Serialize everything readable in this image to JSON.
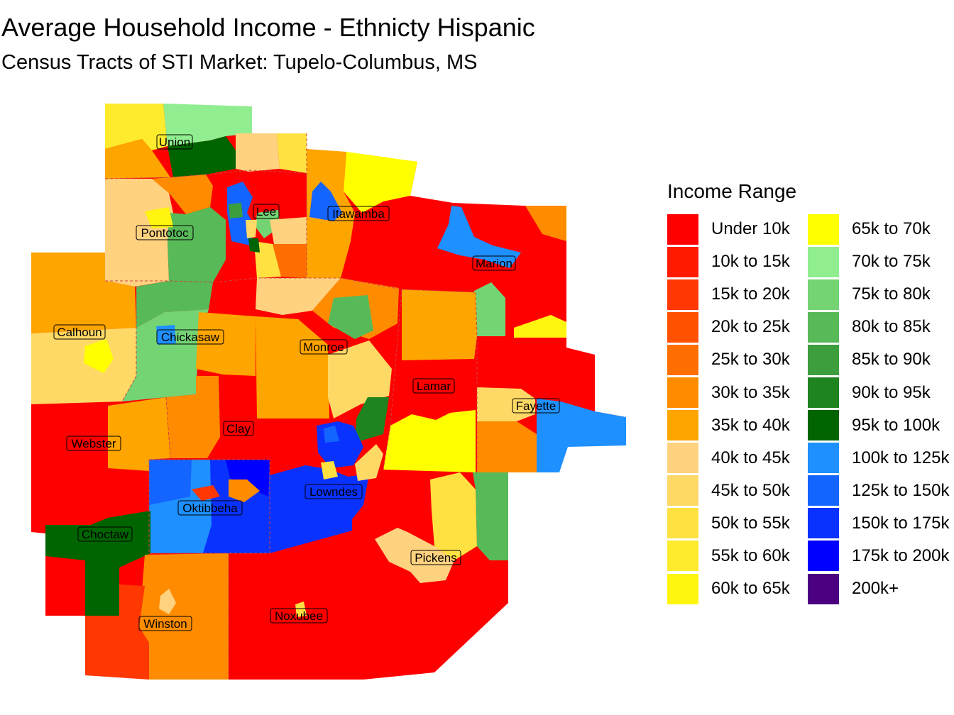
{
  "title": "Average Household Income - Ethnicty Hispanic",
  "subtitle": "Census Tracts of STI Market: Tupelo-Columbus, MS",
  "legend": {
    "title": "Income Range",
    "items": [
      {
        "label": "Under 10k",
        "color": "#FF0000"
      },
      {
        "label": "10k to 15k",
        "color": "#FF1A00"
      },
      {
        "label": "15k to 20k",
        "color": "#FF3700"
      },
      {
        "label": "20k to 25k",
        "color": "#FF5200"
      },
      {
        "label": "25k to 30k",
        "color": "#FF6E00"
      },
      {
        "label": "30k to 35k",
        "color": "#FF8C00"
      },
      {
        "label": "35k to 40k",
        "color": "#FFA500"
      },
      {
        "label": "40k to 45k",
        "color": "#FFD27F"
      },
      {
        "label": "45k to 50k",
        "color": "#FFD966"
      },
      {
        "label": "50k to 55k",
        "color": "#FFE241"
      },
      {
        "label": "55k to 60k",
        "color": "#FFEB2E"
      },
      {
        "label": "60k to 65k",
        "color": "#FFF50F"
      },
      {
        "label": "65k to 70k",
        "color": "#FFFF00"
      },
      {
        "label": "70k to 75k",
        "color": "#90EE90"
      },
      {
        "label": "75k to 80k",
        "color": "#74D474"
      },
      {
        "label": "80k to 85k",
        "color": "#58B958"
      },
      {
        "label": "85k to 90k",
        "color": "#3C9E3C"
      },
      {
        "label": "90k to 95k",
        "color": "#1F841F"
      },
      {
        "label": "95k to 100k",
        "color": "#006400"
      },
      {
        "label": "100k to 125k",
        "color": "#1E90FF"
      },
      {
        "label": "125k to 150k",
        "color": "#1464FF"
      },
      {
        "label": "150k to 175k",
        "color": "#0A32FF"
      },
      {
        "label": "175k to 200k",
        "color": "#0000FF"
      },
      {
        "label": "200k+",
        "color": "#4B0082"
      }
    ]
  },
  "counties": [
    {
      "name": "Union",
      "income_range": "95k to 100k"
    },
    {
      "name": "Lee",
      "income_range": "Under 10k"
    },
    {
      "name": "Itawamba",
      "income_range": "35k to 40k"
    },
    {
      "name": "Pontotoc",
      "income_range": "40k to 45k"
    },
    {
      "name": "Marion",
      "income_range": "Under 10k"
    },
    {
      "name": "Calhoun",
      "income_range": "50k to 55k"
    },
    {
      "name": "Chickasaw",
      "income_range": "80k to 85k"
    },
    {
      "name": "Monroe",
      "income_range": "Under 10k"
    },
    {
      "name": "Lamar",
      "income_range": "Under 10k"
    },
    {
      "name": "Fayette",
      "income_range": "35k to 40k"
    },
    {
      "name": "Webster",
      "income_range": "Under 10k"
    },
    {
      "name": "Clay",
      "income_range": "Under 10k"
    },
    {
      "name": "Lowndes",
      "income_range": "150k to 175k"
    },
    {
      "name": "Oktibbeha",
      "income_range": "100k to 125k"
    },
    {
      "name": "Choctaw",
      "income_range": "95k to 100k"
    },
    {
      "name": "Pickens",
      "income_range": "40k to 45k"
    },
    {
      "name": "Winston",
      "income_range": "30k to 35k"
    },
    {
      "name": "Noxubee",
      "income_range": "Under 10k"
    }
  ]
}
